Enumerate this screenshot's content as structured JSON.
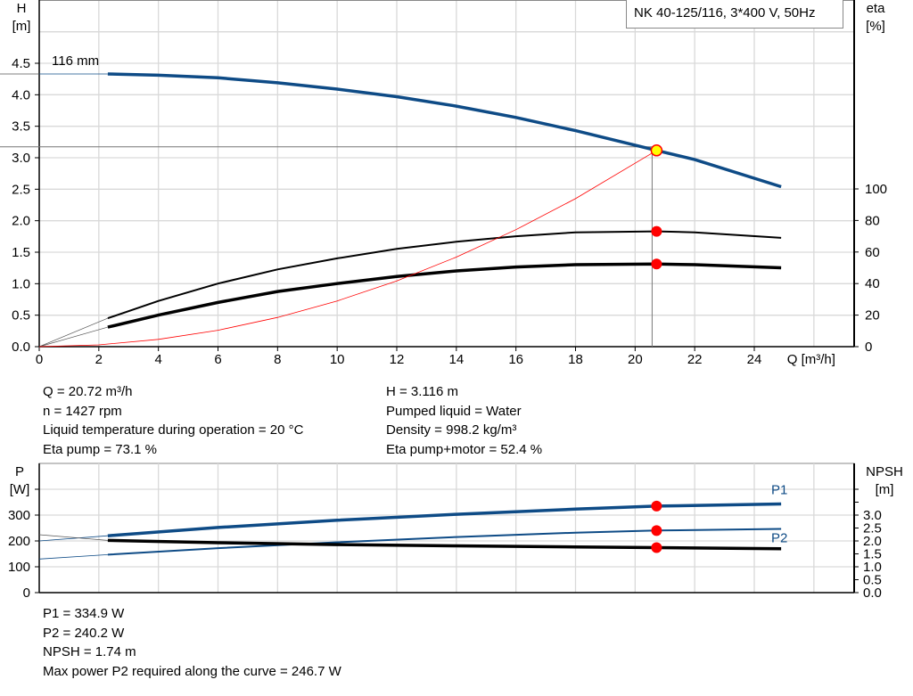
{
  "title": "NK 40-125/116, 3*400 V, 50Hz",
  "colors": {
    "head": "#0e4b86",
    "power": "#0e4b86",
    "efficiency": "#000000",
    "system_curve": "#ff0000",
    "marker": "#ff0000",
    "duty_point": "#ffff00",
    "grid": "#d9d9d9"
  },
  "info_top": {
    "left": [
      "Q = 20.72 m³/h",
      "n = 1427 rpm",
      "Liquid temperature during operation = 20 °C",
      "Eta pump = 73.1 %"
    ],
    "right": [
      "H = 3.116 m",
      "Pumped liquid = Water",
      "Density = 998.2 kg/m³",
      "Eta pump+motor = 52.4 %"
    ]
  },
  "info_bottom": [
    "P1 = 334.9 W",
    "P2 = 240.2 W",
    "NPSH = 1.74 m",
    "Max power P2 required along the curve = 246.7 W"
  ],
  "chart_data": [
    {
      "type": "line",
      "xlabel": "Q [m³/h]",
      "ylabel": "H\n[m]",
      "y2label": "eta\n[%]",
      "xlim": [
        0,
        27.3
      ],
      "ylim": [
        0,
        5.5
      ],
      "y2lim": [
        0,
        220
      ],
      "xticks": [
        0,
        2,
        4,
        6,
        8,
        10,
        12,
        14,
        16,
        18,
        20,
        22,
        24
      ],
      "yticks": [
        "0.0",
        "0.5",
        "1.0",
        "1.5",
        "2.0",
        "2.5",
        "3.0",
        "3.5",
        "4.0",
        "4.5"
      ],
      "y2ticks": [
        0,
        20,
        40,
        60,
        80,
        100
      ],
      "grid": true,
      "annotation": "116 mm",
      "series": [
        {
          "id": "head",
          "axis": "H",
          "x": [
            2.3,
            4,
            6,
            8,
            10,
            12,
            14,
            16,
            18,
            20.72,
            22,
            24.9
          ],
          "y": [
            4.33,
            4.31,
            4.27,
            4.19,
            4.09,
            3.97,
            3.82,
            3.64,
            3.43,
            3.116,
            2.97,
            2.54
          ],
          "extension": {
            "x": [
              0,
              2.3
            ],
            "y": [
              4.33,
              4.33
            ]
          }
        },
        {
          "id": "eta_pump",
          "axis": "eta",
          "x": [
            2.3,
            4,
            6,
            8,
            10,
            12,
            14,
            16,
            18,
            20.72,
            22,
            24.9
          ],
          "y": [
            18,
            29,
            40,
            49,
            56,
            62,
            66.5,
            70,
            72.5,
            73.1,
            72.5,
            69
          ],
          "extension": {
            "x": [
              0,
              2.3
            ],
            "y": [
              0,
              18
            ]
          }
        },
        {
          "id": "eta_pump_motor",
          "axis": "eta",
          "x": [
            2.3,
            4,
            6,
            8,
            10,
            12,
            14,
            16,
            18,
            20.72,
            22,
            24.9
          ],
          "y": [
            12.4,
            20,
            28,
            35,
            40,
            44.5,
            48,
            50.5,
            52,
            52.4,
            52,
            50
          ],
          "extension": {
            "x": [
              0,
              2.3
            ],
            "y": [
              0,
              12.4
            ]
          }
        },
        {
          "id": "system_curve",
          "axis": "H",
          "x": [
            0,
            2,
            4,
            6,
            8,
            10,
            12,
            14,
            16,
            18,
            20.72
          ],
          "y": [
            0,
            0.029,
            0.116,
            0.261,
            0.464,
            0.726,
            1.045,
            1.422,
            1.858,
            2.351,
            3.116
          ]
        }
      ],
      "duty_point": {
        "Q": 20.72,
        "H": 3.116,
        "eta_pump": 73.1,
        "eta_pump_motor": 52.4
      }
    },
    {
      "type": "line",
      "ylabel": "P\n[W]",
      "y2label": "NPSH\n[m]",
      "xlim": [
        0,
        27.3
      ],
      "ylim": [
        0,
        500
      ],
      "y2lim": [
        0,
        5.0
      ],
      "yticks": [
        0,
        100,
        200,
        300
      ],
      "y2ticks": [
        "0.0",
        "0.5",
        "1.0",
        "1.5",
        "2.0",
        "2.5",
        "3.0"
      ],
      "grid": true,
      "series": [
        {
          "id": "P1",
          "name": "P1",
          "axis": "P",
          "x": [
            2.3,
            6,
            10,
            14,
            18,
            20.72,
            24.9
          ],
          "y": [
            220,
            252,
            280,
            303,
            323,
            334.9,
            343
          ],
          "extension": {
            "x": [
              0,
              2.3
            ],
            "y": [
              200,
              220
            ]
          }
        },
        {
          "id": "P2",
          "name": "P2",
          "axis": "P",
          "x": [
            2.3,
            6,
            10,
            14,
            18,
            20.72,
            24.9
          ],
          "y": [
            147,
            172,
            195,
            215,
            232,
            240.2,
            246.7
          ],
          "extension": {
            "x": [
              0,
              2.3
            ],
            "y": [
              130,
              147
            ]
          }
        },
        {
          "id": "NPSH",
          "axis": "NPSH",
          "x": [
            2.3,
            6,
            10,
            14,
            18,
            20.72,
            24.9
          ],
          "y": [
            2.02,
            1.93,
            1.86,
            1.81,
            1.77,
            1.74,
            1.7
          ],
          "extension": {
            "x": [
              0,
              2.3
            ],
            "y": [
              2.24,
              2.02
            ]
          }
        }
      ],
      "duty_point": {
        "Q": 20.72,
        "P1": 334.9,
        "P2": 240.2,
        "NPSH": 1.74
      }
    }
  ]
}
